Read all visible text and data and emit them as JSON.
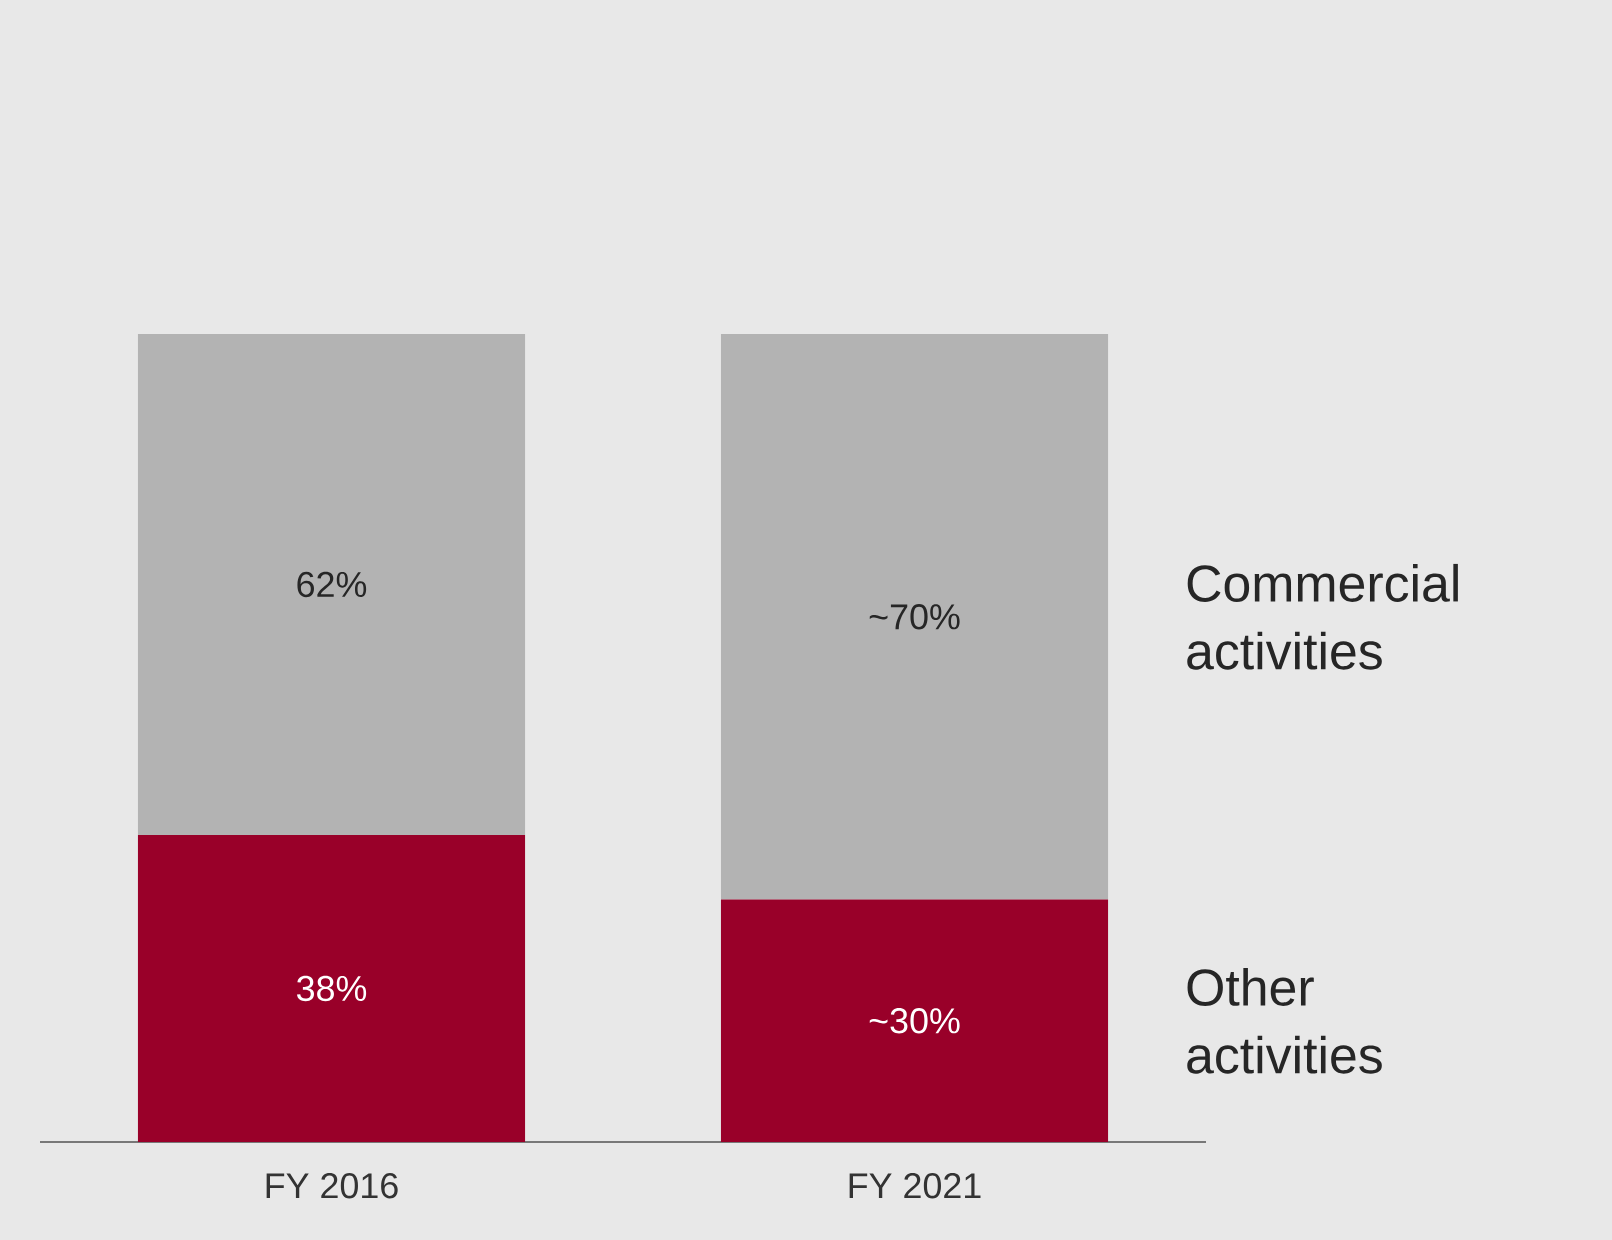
{
  "chart_data": {
    "type": "bar",
    "stacked": true,
    "categories": [
      "FY 2016",
      "FY 2021"
    ],
    "series": [
      {
        "name": "Other activities",
        "color": "#990029",
        "values": [
          38,
          30
        ],
        "value_labels": [
          "38%",
          "~30%"
        ]
      },
      {
        "name": "Commercial activities",
        "color": "#b3b3b3",
        "values": [
          62,
          70
        ],
        "value_labels": [
          "62%",
          "~70%"
        ]
      }
    ],
    "ylim": [
      0,
      100
    ],
    "tick_labels": "x",
    "legend": "right"
  }
}
